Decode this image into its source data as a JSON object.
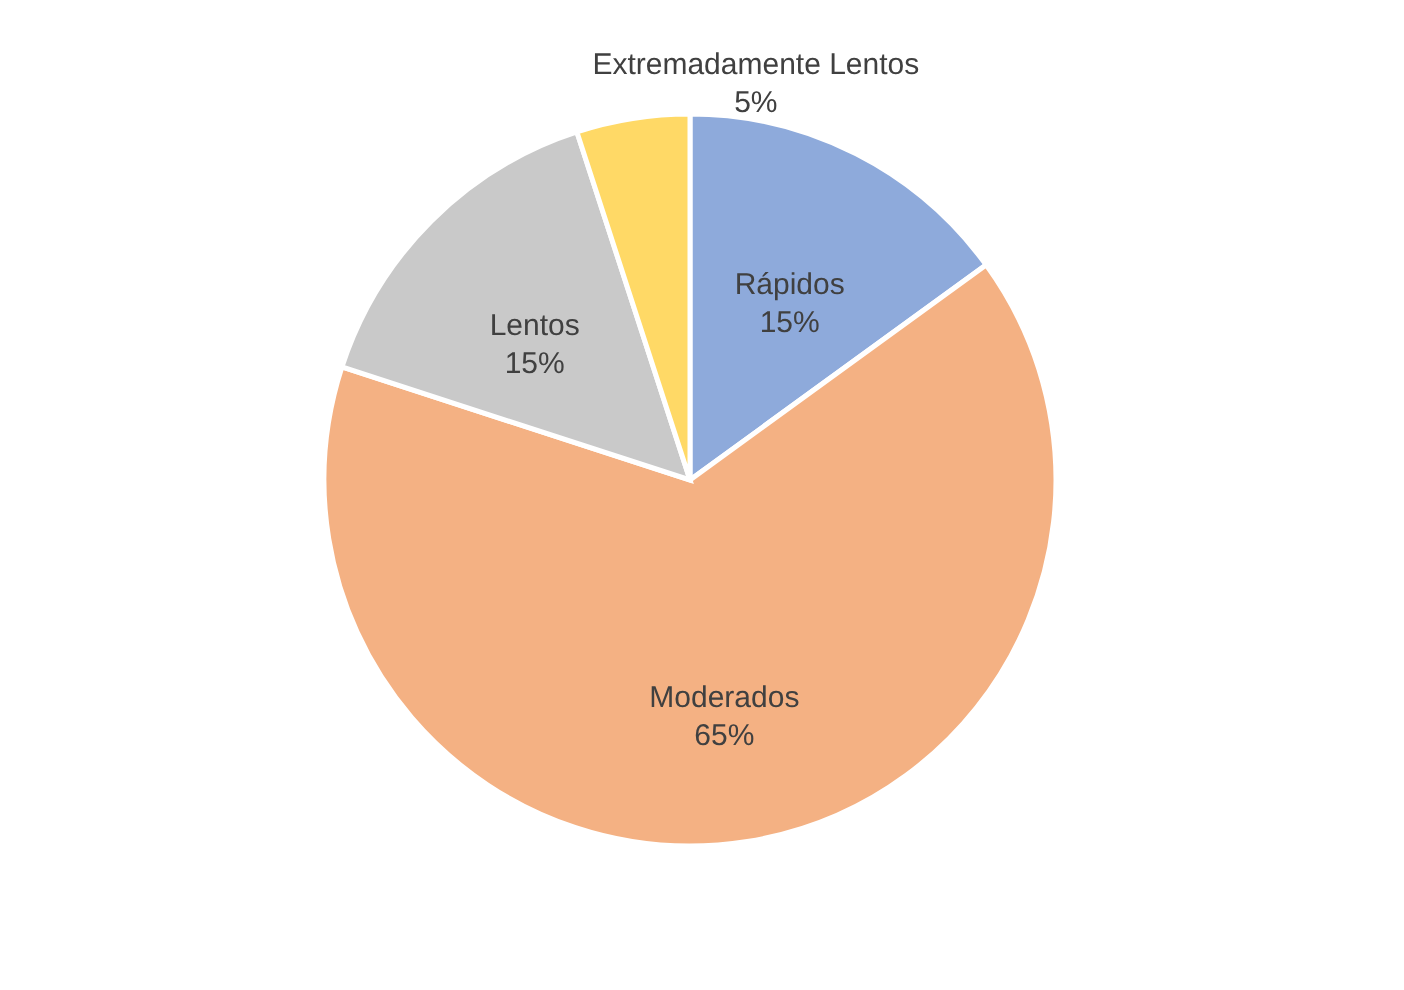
{
  "chart_data": {
    "type": "pie",
    "categories": [
      "Rápidos",
      "Moderados",
      "Lentos",
      "Extremadamente Lentos"
    ],
    "values": [
      15,
      65,
      15,
      5
    ],
    "colors": [
      "#8eaadb",
      "#f4b183",
      "#c9c9c9",
      "#ffd966"
    ],
    "value_labels": [
      "15%",
      "65%",
      "15%",
      "5%"
    ]
  }
}
